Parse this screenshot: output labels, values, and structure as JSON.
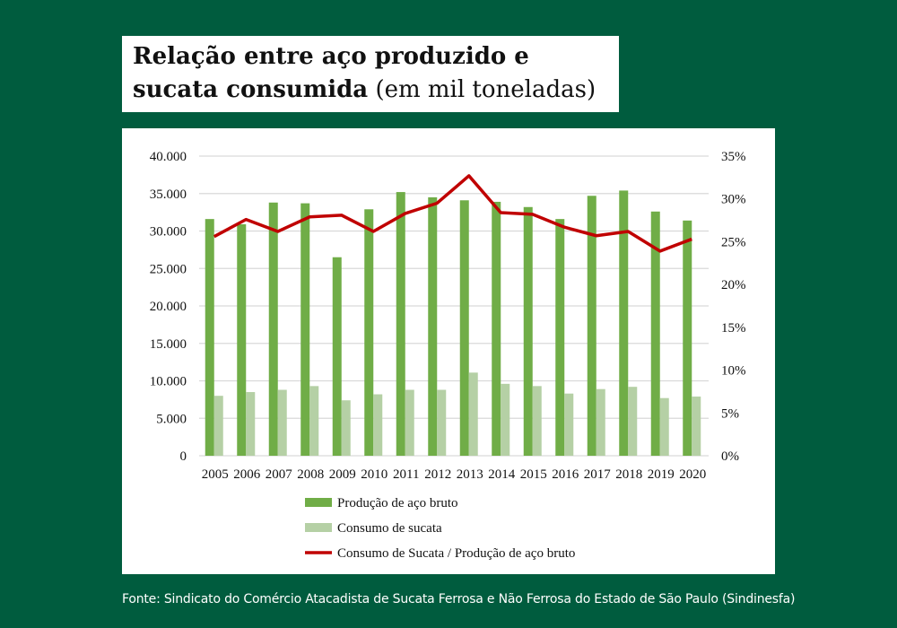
{
  "title": {
    "bold": "Relação entre aço produzido e sucata consumida",
    "normal": "(em mil toneladas)"
  },
  "footer": "Fonte: Sindicato do Comércio Atacadista de Sucata Ferrosa e Não Ferrosa do Estado de São Paulo (Sindinesfa)",
  "colors": {
    "background": "#005c3e",
    "production": "#70ad47",
    "scrap": "#b5d0a5",
    "ratio": "#c00000"
  },
  "chart_data": {
    "type": "bar+line",
    "categories": [
      "2005",
      "2006",
      "2007",
      "2008",
      "2009",
      "2010",
      "2011",
      "2012",
      "2013",
      "2014",
      "2015",
      "2016",
      "2017",
      "2018",
      "2019",
      "2020"
    ],
    "series": [
      {
        "name": "Produção de aço bruto",
        "type": "bar",
        "axis": "left",
        "values": [
          31600,
          30900,
          33800,
          33700,
          26500,
          32900,
          35200,
          34500,
          34100,
          33900,
          33200,
          31600,
          34700,
          35400,
          32600,
          31400
        ]
      },
      {
        "name": "Consumo de sucata",
        "type": "bar",
        "axis": "left",
        "values": [
          8000,
          8500,
          8800,
          9300,
          7400,
          8200,
          8800,
          8800,
          11100,
          9600,
          9300,
          8300,
          8900,
          9200,
          7700,
          7900
        ]
      },
      {
        "name": "Consumo de Sucata / Produção de aço bruto",
        "type": "line",
        "axis": "right",
        "values": [
          25.6,
          27.6,
          26.2,
          27.9,
          28.1,
          26.2,
          28.3,
          29.5,
          32.7,
          28.4,
          28.2,
          26.7,
          25.7,
          26.2,
          23.9,
          25.3
        ]
      }
    ],
    "left_axis": {
      "ylim": [
        0,
        40000
      ],
      "ticks": [
        "0",
        "5.000",
        "10.000",
        "15.000",
        "20.000",
        "25.000",
        "30.000",
        "35.000",
        "40.000"
      ]
    },
    "right_axis": {
      "ylim": [
        0,
        35
      ],
      "ticks": [
        "0%",
        "5%",
        "10%",
        "15%",
        "20%",
        "25%",
        "30%",
        "35%"
      ]
    },
    "grid": true,
    "legend": "bottom"
  }
}
